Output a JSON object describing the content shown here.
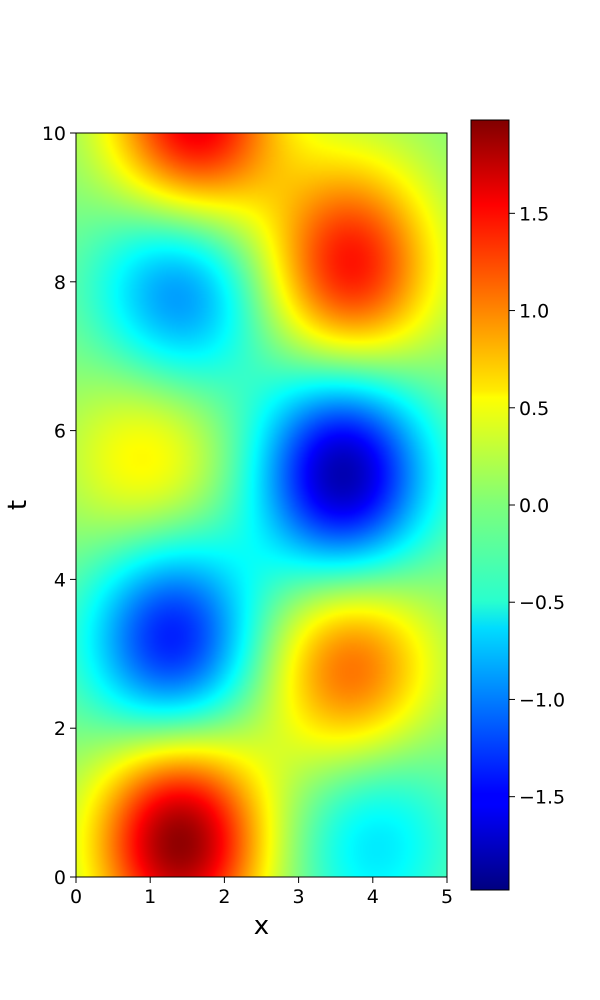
{
  "chart_data": {
    "type": "heatmap",
    "title": "",
    "xlabel": "x",
    "ylabel": "t",
    "xlim": [
      0,
      5
    ],
    "ylim": [
      0,
      10
    ],
    "x_ticks": [
      "0",
      "1",
      "2",
      "3",
      "4",
      "5"
    ],
    "y_ticks": [
      "0",
      "2",
      "4",
      "6",
      "8",
      "10"
    ],
    "colormap": "jet",
    "colorbar": {
      "range": [
        -1.98,
        1.98
      ],
      "ticks": [
        "−1.5",
        "−1.0",
        "−0.5",
        "0.0",
        "0.5",
        "1.0",
        "1.5"
      ],
      "tick_values": [
        -1.5,
        -1.0,
        -0.5,
        0.0,
        0.5,
        1.0,
        1.5
      ]
    },
    "features": [
      {
        "x": 1.4,
        "t": 0.5,
        "value": 1.95
      },
      {
        "x": 4.0,
        "t": 0.6,
        "value": -0.65
      },
      {
        "x": 1.3,
        "t": 3.2,
        "value": -1.45
      },
      {
        "x": 3.7,
        "t": 2.8,
        "value": 1.15
      },
      {
        "x": 1.0,
        "t": 5.6,
        "value": 0.65
      },
      {
        "x": 3.6,
        "t": 5.4,
        "value": -1.85
      },
      {
        "x": 1.4,
        "t": 7.9,
        "value": -1.05
      },
      {
        "x": 3.7,
        "t": 8.2,
        "value": 1.45
      },
      {
        "x": 1.6,
        "t": 10.1,
        "value": 1.65
      }
    ]
  }
}
